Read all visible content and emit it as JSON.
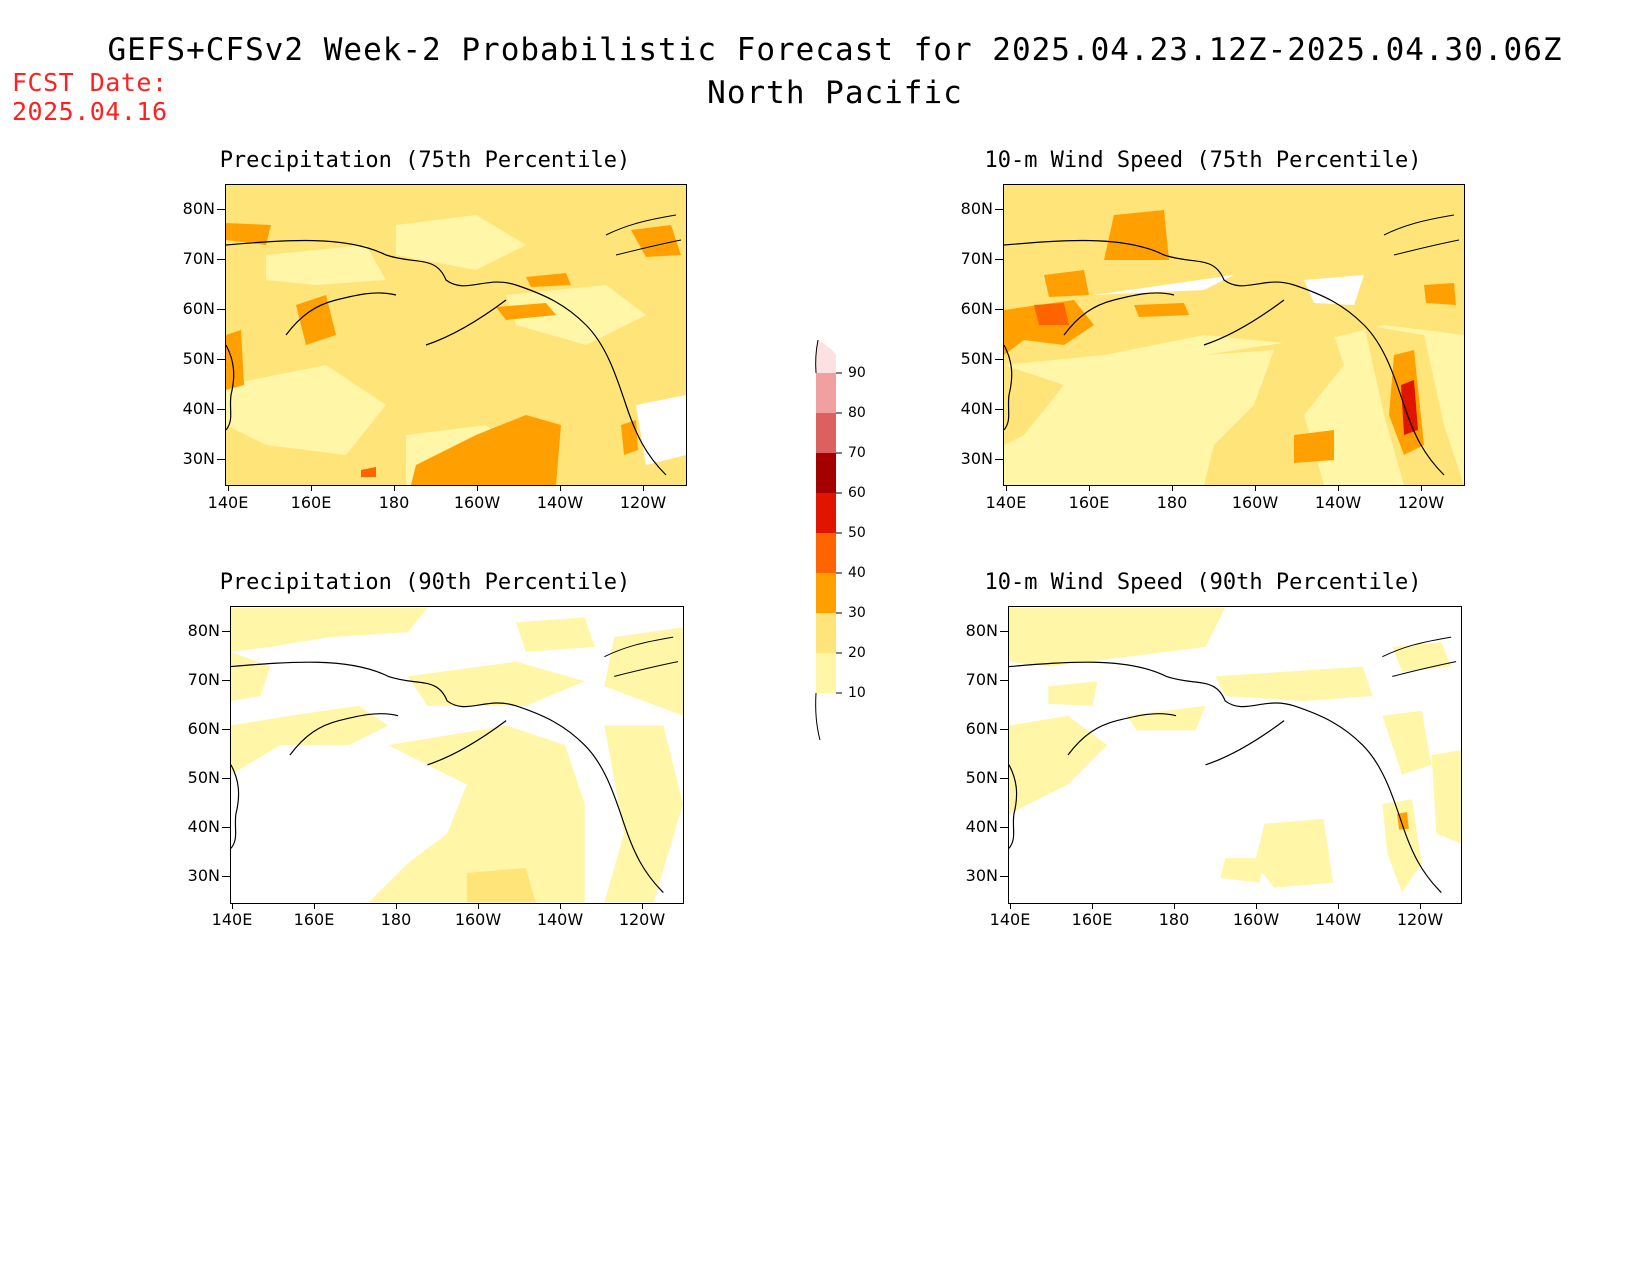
{
  "title": "GEFS+CFSv2 Week-2 Probabilistic Forecast for 2025.04.23.12Z-2025.04.30.06Z",
  "subtitle": "North Pacific",
  "fcst_date_label": "FCST Date:",
  "fcst_date": "2025.04.16",
  "colors": {
    "c10": "#fff6a8",
    "c20": "#ffe47a",
    "c30": "#ffa000",
    "c40": "#ff6400",
    "c50": "#e11400",
    "c60": "#a50000",
    "c70": "#dd6060",
    "c80": "#f0a0a0",
    "c90": "#fde0e0",
    "fcst": "#ff2020"
  },
  "colorbar": {
    "levels": [
      "10",
      "20",
      "30",
      "40",
      "50",
      "60",
      "70",
      "80",
      "90"
    ]
  },
  "axes": {
    "lat_labels": [
      "80N",
      "70N",
      "60N",
      "50N",
      "40N",
      "30N"
    ],
    "lon_labels": [
      "140E",
      "160E",
      "180",
      "160W",
      "140W",
      "120W"
    ]
  },
  "panels": [
    {
      "id": "p1",
      "title": "Precipitation (75th Percentile)",
      "variable": "precipitation",
      "percentile": 75
    },
    {
      "id": "p2",
      "title": "10-m Wind Speed (75th Percentile)",
      "variable": "wind",
      "percentile": 75
    },
    {
      "id": "p3",
      "title": "Precipitation (90th Percentile)",
      "variable": "precipitation",
      "percentile": 90
    },
    {
      "id": "p4",
      "title": "10-m Wind Speed (90th Percentile)",
      "variable": "wind",
      "percentile": 90
    }
  ]
}
